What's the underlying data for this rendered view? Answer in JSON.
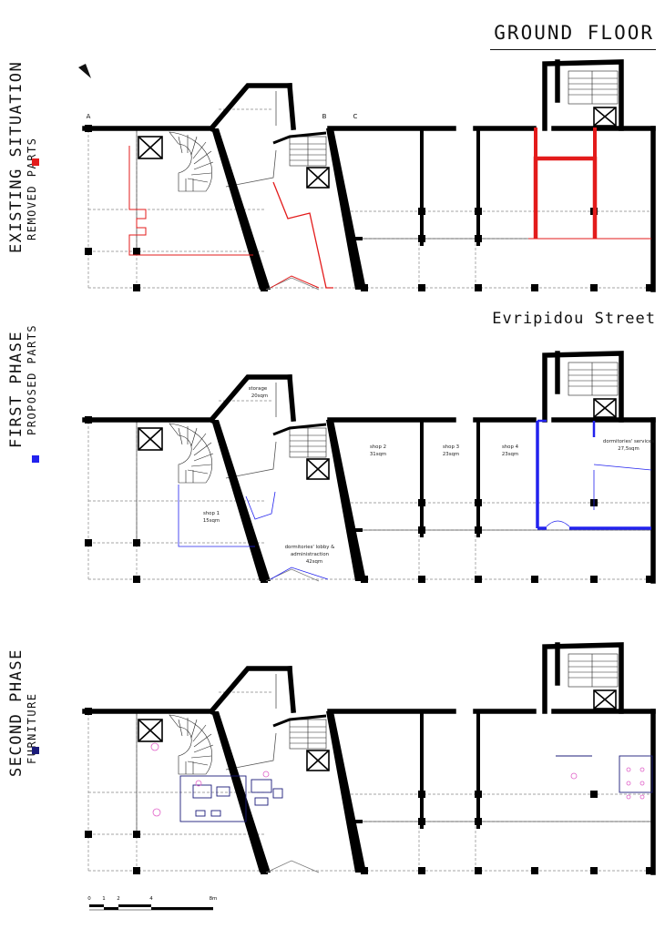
{
  "title": "GROUND FLOOR",
  "street": "Evripidou Street",
  "colors": {
    "removed": "#e31b1b",
    "proposed": "#2222ee",
    "furniture": "#1c1c7a",
    "furniture_marks": "#e060c8",
    "walls": "#000000"
  },
  "axis_letters": [
    "A",
    "B",
    "C"
  ],
  "panels": [
    {
      "id": "existing",
      "title": "EXISTING SITUATION",
      "subtitle": "REMOVED PARTS",
      "swatch": "removed"
    },
    {
      "id": "first",
      "title": "FIRST PHASE",
      "subtitle": "PROPOSED PARTS",
      "swatch": "proposed"
    },
    {
      "id": "second",
      "title": "SECOND PHASE",
      "subtitle": "FURNITURE",
      "swatch": "furniture"
    }
  ],
  "rooms": {
    "storage": {
      "name": "storage",
      "area": "20sqm"
    },
    "shop1": {
      "name": "shop 1",
      "area": "15sqm"
    },
    "shop2": {
      "name": "shop 2",
      "area": "31sqm"
    },
    "shop3": {
      "name": "shop 3",
      "area": "23sqm"
    },
    "shop4": {
      "name": "shop 4",
      "area": "23sqm"
    },
    "services": {
      "name": "dormitories' services",
      "area": "27,5sqm"
    },
    "lobby_line1": "dormitories' lobby &",
    "lobby_line2": "administraction",
    "lobby_area": "42sqm"
  },
  "scale_bar": {
    "ticks": [
      "0",
      "1",
      "2",
      "4",
      "8m"
    ]
  },
  "north_arrow": "north-arrow-icon"
}
